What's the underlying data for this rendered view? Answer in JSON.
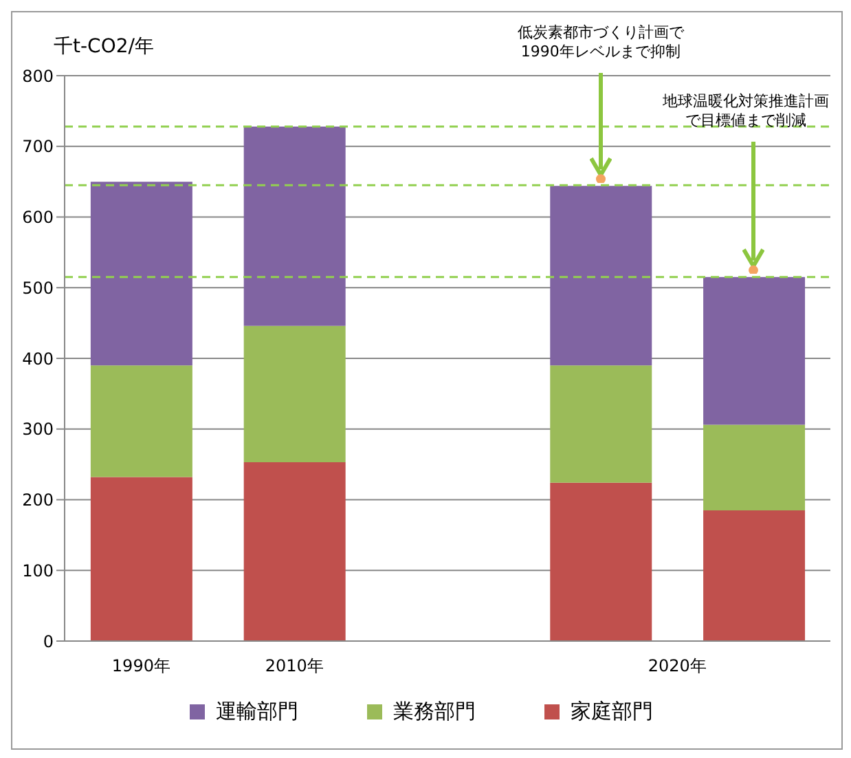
{
  "chart_data": {
    "type": "bar",
    "stacked": true,
    "ylabel": "千t-CO2/年",
    "categories": [
      "1990年",
      "2010年",
      null,
      "2020年",
      null
    ],
    "series": [
      {
        "name": "家庭部門",
        "color": "#c0504d",
        "values": [
          232,
          253,
          null,
          224,
          185
        ]
      },
      {
        "name": "業務部門",
        "color": "#9bbb59",
        "values": [
          158,
          193,
          null,
          166,
          121
        ]
      },
      {
        "name": "運輸部門",
        "color": "#8064a2",
        "values": [
          260,
          282,
          null,
          254,
          209
        ]
      }
    ],
    "ylim": [
      0,
      800
    ],
    "yticks": [
      0,
      100,
      200,
      300,
      400,
      500,
      600,
      700,
      800
    ],
    "grid": "y",
    "legend": "bottom",
    "ref_lines": [
      {
        "axis": "y",
        "value": 728,
        "color": "#92d050",
        "line_style": "dashed"
      },
      {
        "axis": "y",
        "value": 645,
        "color": "#92d050",
        "line_style": "dashed"
      },
      {
        "axis": "y",
        "value": 515,
        "color": "#92d050",
        "line_style": "dashed"
      }
    ],
    "annotations": [
      "低炭素都市づくり計画で1990年レベルまで抑制",
      "地球温暖化対策推進計画で目標値まで削減"
    ]
  }
}
